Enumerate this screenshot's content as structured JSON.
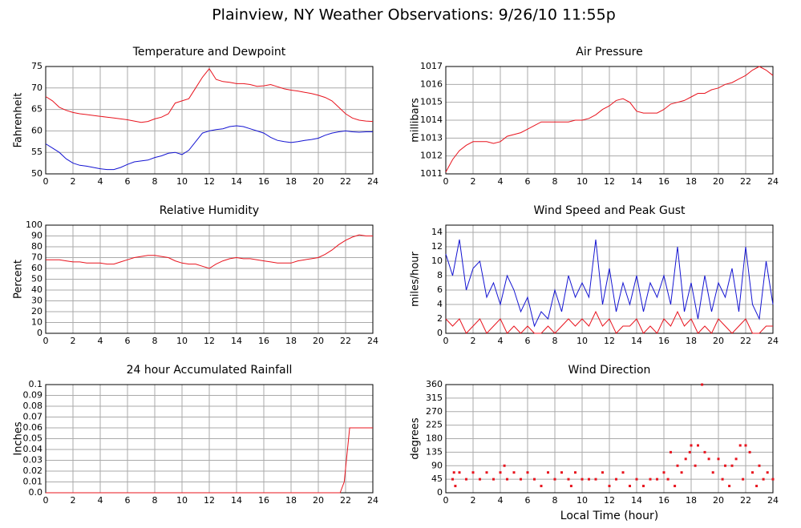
{
  "title": "Plainview, NY Weather Observations: 9/26/10 11:55p",
  "chart_data": [
    {
      "type": "line",
      "title": "Temperature and Dewpoint",
      "ylabel": "Fahrenheit",
      "x": [
        0,
        0.5,
        1,
        1.5,
        2,
        2.5,
        3,
        3.5,
        4,
        4.5,
        5,
        5.5,
        6,
        6.5,
        7,
        7.5,
        8,
        8.5,
        9,
        9.5,
        10,
        10.5,
        11,
        11.5,
        12,
        12.5,
        13,
        13.5,
        14,
        14.5,
        15,
        15.5,
        16,
        16.5,
        17,
        17.5,
        18,
        18.5,
        19,
        19.5,
        20,
        20.5,
        21,
        21.5,
        22,
        22.5,
        23,
        23.5,
        24
      ],
      "series": [
        {
          "color": "#e8141e",
          "values": [
            68,
            67,
            65.5,
            64.8,
            64.3,
            64,
            63.8,
            63.6,
            63.4,
            63.2,
            63,
            62.8,
            62.6,
            62.3,
            62,
            62.2,
            62.8,
            63.2,
            64,
            66.5,
            67,
            67.5,
            70,
            72.5,
            74.5,
            72,
            71.5,
            71.3,
            71,
            71,
            70.8,
            70.4,
            70.5,
            70.8,
            70.3,
            69.8,
            69.5,
            69.3,
            69,
            68.7,
            68.3,
            67.8,
            67,
            65.5,
            64,
            63,
            62.5,
            62.3,
            62.2
          ]
        },
        {
          "color": "#1414d2",
          "values": [
            57,
            56,
            55,
            53.5,
            52.5,
            52,
            51.8,
            51.5,
            51.2,
            51,
            51,
            51.5,
            52.2,
            52.8,
            53,
            53.2,
            53.8,
            54.2,
            54.8,
            55,
            54.5,
            55.5,
            57.5,
            59.5,
            60,
            60.3,
            60.5,
            61,
            61.2,
            61,
            60.5,
            60,
            59.5,
            58.5,
            57.8,
            57.5,
            57.3,
            57.5,
            57.8,
            58,
            58.3,
            59,
            59.5,
            59.8,
            60,
            59.8,
            59.7,
            59.8,
            59.8
          ]
        }
      ],
      "xlim": [
        0,
        24
      ],
      "xticks": [
        0,
        2,
        4,
        6,
        8,
        10,
        12,
        14,
        16,
        18,
        20,
        22,
        24
      ],
      "ylim": [
        50,
        75
      ],
      "yticks": [
        50,
        55,
        60,
        65,
        70,
        75
      ],
      "grid": true
    },
    {
      "type": "line",
      "title": "Air Pressure",
      "ylabel": "millibars",
      "x": [
        0,
        0.5,
        1,
        1.5,
        2,
        2.5,
        3,
        3.5,
        4,
        4.5,
        5,
        5.5,
        6,
        6.5,
        7,
        7.5,
        8,
        8.5,
        9,
        9.5,
        10,
        10.5,
        11,
        11.5,
        12,
        12.5,
        13,
        13.5,
        14,
        14.5,
        15,
        15.5,
        16,
        16.5,
        17,
        17.5,
        18,
        18.5,
        19,
        19.5,
        20,
        20.5,
        21,
        21.5,
        22,
        22.5,
        23,
        23.5,
        24
      ],
      "series": [
        {
          "color": "#e8141e",
          "values": [
            1011.1,
            1011.8,
            1012.3,
            1012.6,
            1012.8,
            1012.8,
            1012.8,
            1012.7,
            1012.8,
            1013.1,
            1013.2,
            1013.3,
            1013.5,
            1013.7,
            1013.9,
            1013.9,
            1013.9,
            1013.9,
            1013.9,
            1014,
            1014,
            1014.1,
            1014.3,
            1014.6,
            1014.8,
            1015.1,
            1015.2,
            1015,
            1014.5,
            1014.4,
            1014.4,
            1014.4,
            1014.6,
            1014.9,
            1015,
            1015.1,
            1015.3,
            1015.5,
            1015.5,
            1015.7,
            1015.8,
            1016,
            1016.1,
            1016.3,
            1016.5,
            1016.8,
            1017,
            1016.8,
            1016.5
          ]
        }
      ],
      "xlim": [
        0,
        24
      ],
      "xticks": [
        0,
        2,
        4,
        6,
        8,
        10,
        12,
        14,
        16,
        18,
        20,
        22,
        24
      ],
      "ylim": [
        1011,
        1017
      ],
      "yticks": [
        1011,
        1012,
        1013,
        1014,
        1015,
        1016,
        1017
      ],
      "grid": true
    },
    {
      "type": "line",
      "title": "Relative Humidity",
      "ylabel": "Percent",
      "x": [
        0,
        0.5,
        1,
        1.5,
        2,
        2.5,
        3,
        3.5,
        4,
        4.5,
        5,
        5.5,
        6,
        6.5,
        7,
        7.5,
        8,
        8.5,
        9,
        9.5,
        10,
        10.5,
        11,
        11.5,
        12,
        12.5,
        13,
        13.5,
        14,
        14.5,
        15,
        15.5,
        16,
        16.5,
        17,
        17.5,
        18,
        18.5,
        19,
        19.5,
        20,
        20.5,
        21,
        21.5,
        22,
        22.5,
        23,
        23.5,
        24
      ],
      "series": [
        {
          "color": "#e8141e",
          "values": [
            68,
            68,
            68,
            67,
            66,
            66,
            65,
            65,
            65,
            64,
            64,
            66,
            68,
            70,
            71,
            72,
            72,
            71,
            70,
            67,
            65,
            64,
            64,
            62,
            60,
            64,
            67,
            69,
            70,
            69,
            69,
            68,
            67,
            66,
            65,
            65,
            65,
            67,
            68,
            69,
            70,
            73,
            77,
            82,
            86,
            89,
            91,
            90,
            90
          ]
        }
      ],
      "xlim": [
        0,
        24
      ],
      "xticks": [
        0,
        2,
        4,
        6,
        8,
        10,
        12,
        14,
        16,
        18,
        20,
        22,
        24
      ],
      "ylim": [
        0,
        100
      ],
      "yticks": [
        0,
        10,
        20,
        30,
        40,
        50,
        60,
        70,
        80,
        90,
        100
      ],
      "grid": true
    },
    {
      "type": "line",
      "title": "Wind Speed and Peak Gust",
      "ylabel": "miles/hour",
      "x": [
        0,
        0.5,
        1,
        1.5,
        2,
        2.5,
        3,
        3.5,
        4,
        4.5,
        5,
        5.5,
        6,
        6.5,
        7,
        7.5,
        8,
        8.5,
        9,
        9.5,
        10,
        10.5,
        11,
        11.5,
        12,
        12.5,
        13,
        13.5,
        14,
        14.5,
        15,
        15.5,
        16,
        16.5,
        17,
        17.5,
        18,
        18.5,
        19,
        19.5,
        20,
        20.5,
        21,
        21.5,
        22,
        22.5,
        23,
        23.5,
        24
      ],
      "series": [
        {
          "color": "#1414d2",
          "values": [
            11,
            8,
            13,
            6,
            9,
            10,
            5,
            7,
            4,
            8,
            6,
            3,
            5,
            1,
            3,
            2,
            6,
            3,
            8,
            5,
            7,
            5,
            13,
            4,
            9,
            3,
            7,
            4,
            8,
            3,
            7,
            5,
            8,
            4,
            12,
            3,
            7,
            2,
            8,
            3,
            7,
            5,
            9,
            3,
            12,
            4,
            2,
            10,
            4
          ]
        },
        {
          "color": "#e8141e",
          "values": [
            2,
            1,
            2,
            0,
            1,
            2,
            0,
            1,
            2,
            0,
            1,
            0,
            1,
            0,
            0,
            1,
            0,
            1,
            2,
            1,
            2,
            1,
            3,
            1,
            2,
            0,
            1,
            1,
            2,
            0,
            1,
            0,
            2,
            1,
            3,
            1,
            2,
            0,
            1,
            0,
            2,
            1,
            0,
            1,
            2,
            0,
            0,
            1,
            1
          ]
        }
      ],
      "xlim": [
        0,
        24
      ],
      "xticks": [
        0,
        2,
        4,
        6,
        8,
        10,
        12,
        14,
        16,
        18,
        20,
        22,
        24
      ],
      "ylim": [
        0,
        15
      ],
      "yticks": [
        0,
        2,
        4,
        6,
        8,
        10,
        12,
        14
      ],
      "grid": true
    },
    {
      "type": "line",
      "title": "24 hour Accumulated Rainfall",
      "ylabel": "Inches",
      "x": [
        0,
        21.6,
        21.9,
        22.3,
        24
      ],
      "series": [
        {
          "color": "#e8141e",
          "values": [
            0,
            0,
            0.01,
            0.06,
            0.06
          ]
        }
      ],
      "xlim": [
        0,
        24
      ],
      "xticks": [
        0,
        2,
        4,
        6,
        8,
        10,
        12,
        14,
        16,
        18,
        20,
        22,
        24
      ],
      "ylim": [
        0,
        0.1
      ],
      "yticks": [
        {
          "value": 0,
          "label": "0.0"
        },
        0.01,
        0.02,
        0.03,
        0.04,
        0.05,
        0.06,
        0.07,
        0.08,
        0.09,
        0.1
      ],
      "grid": true
    },
    {
      "type": "scatter",
      "title": "Wind Direction",
      "ylabel": "degrees",
      "xlabel": "Local Time (hour)",
      "x": [
        0.5,
        0.6,
        0.7,
        1,
        1.5,
        2,
        2.5,
        3,
        3.5,
        4,
        4.3,
        4.5,
        5,
        5.5,
        6,
        6.5,
        7,
        7.5,
        8,
        8.5,
        9,
        9.2,
        9.5,
        10,
        10.5,
        11,
        11.5,
        12,
        12.5,
        13,
        13.5,
        14,
        14.5,
        15,
        15.5,
        16,
        16.3,
        16.5,
        16.8,
        17,
        17.3,
        17.6,
        17.9,
        18,
        18.3,
        18.5,
        18.8,
        19,
        19.3,
        19.6,
        20,
        20.3,
        20.5,
        20.8,
        21,
        21.3,
        21.6,
        21.8,
        22,
        22.3,
        22.5,
        22.8,
        23,
        23.3,
        23.6,
        24
      ],
      "series": [
        {
          "color": "#e8141e",
          "values": [
            45,
            67.5,
            22.5,
            67.5,
            45,
            67.5,
            45,
            67.5,
            45,
            67.5,
            90,
            45,
            67.5,
            45,
            67.5,
            45,
            22.5,
            67.5,
            45,
            67.5,
            45,
            22.5,
            67.5,
            45,
            45,
            45,
            67.5,
            22.5,
            45,
            67.5,
            22.5,
            45,
            22.5,
            45,
            45,
            67.5,
            45,
            135,
            22.5,
            90,
            67.5,
            112.5,
            135,
            157.5,
            90,
            157.5,
            360,
            135,
            112.5,
            67.5,
            112.5,
            45,
            90,
            22.5,
            90,
            112.5,
            157.5,
            45,
            157.5,
            135,
            67.5,
            22.5,
            90,
            45,
            67.5,
            45
          ]
        }
      ],
      "xlim": [
        0,
        24
      ],
      "xticks": [
        0,
        2,
        4,
        6,
        8,
        10,
        12,
        14,
        16,
        18,
        20,
        22,
        24
      ],
      "ylim": [
        0,
        360
      ],
      "yticks": [
        0,
        45,
        90,
        135,
        180,
        225,
        270,
        315,
        360
      ],
      "grid": true
    }
  ]
}
